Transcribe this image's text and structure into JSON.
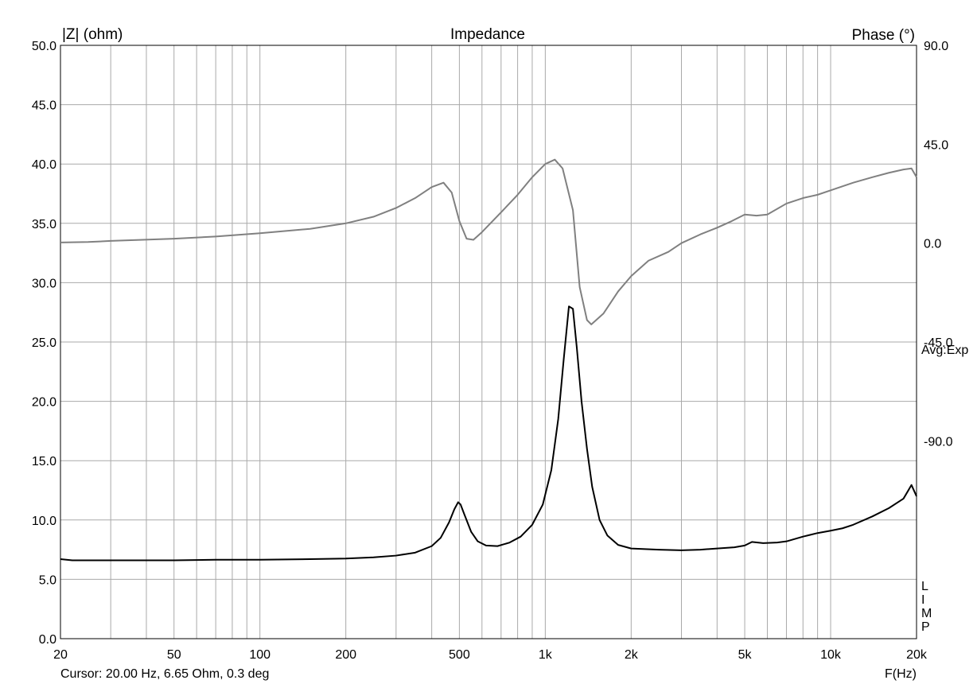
{
  "chart_data": {
    "type": "line",
    "title": "Impedance",
    "ylabel_left": "|Z| (ohm)",
    "ylabel_right": "Phase (°)",
    "xlabel": "F(Hz)",
    "x_scale": "log",
    "xlim": [
      20,
      20000
    ],
    "ylim_left": [
      0,
      50
    ],
    "ylim_right": [
      -180,
      90
    ],
    "grid": true,
    "x_ticks": [
      {
        "value": 20,
        "label": "20"
      },
      {
        "value": 50,
        "label": "50"
      },
      {
        "value": 100,
        "label": "100"
      },
      {
        "value": 200,
        "label": "200"
      },
      {
        "value": 500,
        "label": "500"
      },
      {
        "value": 1000,
        "label": "1k"
      },
      {
        "value": 2000,
        "label": "2k"
      },
      {
        "value": 5000,
        "label": "5k"
      },
      {
        "value": 10000,
        "label": "10k"
      },
      {
        "value": 20000,
        "label": "20k"
      }
    ],
    "x_minor_grid": [
      30,
      40,
      50,
      60,
      70,
      80,
      90,
      100,
      200,
      300,
      400,
      500,
      600,
      700,
      800,
      900,
      1000,
      2000,
      3000,
      4000,
      5000,
      6000,
      7000,
      8000,
      9000,
      10000
    ],
    "y_left_ticks": [
      {
        "value": 0,
        "label": "0.0"
      },
      {
        "value": 5,
        "label": "5.0"
      },
      {
        "value": 10,
        "label": "10.0"
      },
      {
        "value": 15,
        "label": "15.0"
      },
      {
        "value": 20,
        "label": "20.0"
      },
      {
        "value": 25,
        "label": "25.0"
      },
      {
        "value": 30,
        "label": "30.0"
      },
      {
        "value": 35,
        "label": "35.0"
      },
      {
        "value": 40,
        "label": "40.0"
      },
      {
        "value": 45,
        "label": "45.0"
      },
      {
        "value": 50,
        "label": "50.0"
      }
    ],
    "y_right_ticks": [
      {
        "value": 90,
        "label": "90.0"
      },
      {
        "value": 45,
        "label": "45.0"
      },
      {
        "value": 0,
        "label": "0.0"
      },
      {
        "value": -45,
        "label": "-45.0"
      },
      {
        "value": -90,
        "label": "-90.0"
      }
    ],
    "annotations": {
      "avg": "Avg:Exp",
      "limp": [
        "L",
        "I",
        "M",
        "P"
      ],
      "cursor": "Cursor: 20.00 Hz, 6.65 Ohm, 0.3 deg"
    },
    "series": [
      {
        "axis": "left",
        "color": "#000000",
        "points": [
          [
            20,
            6.7
          ],
          [
            22,
            6.6
          ],
          [
            25,
            6.6
          ],
          [
            30,
            6.6
          ],
          [
            40,
            6.6
          ],
          [
            50,
            6.6
          ],
          [
            70,
            6.65
          ],
          [
            100,
            6.65
          ],
          [
            150,
            6.7
          ],
          [
            200,
            6.75
          ],
          [
            250,
            6.85
          ],
          [
            300,
            7.0
          ],
          [
            350,
            7.25
          ],
          [
            400,
            7.8
          ],
          [
            430,
            8.5
          ],
          [
            460,
            9.8
          ],
          [
            480,
            10.9
          ],
          [
            495,
            11.5
          ],
          [
            505,
            11.3
          ],
          [
            520,
            10.5
          ],
          [
            550,
            9.0
          ],
          [
            580,
            8.2
          ],
          [
            620,
            7.85
          ],
          [
            680,
            7.8
          ],
          [
            750,
            8.1
          ],
          [
            820,
            8.6
          ],
          [
            900,
            9.6
          ],
          [
            980,
            11.3
          ],
          [
            1050,
            14.2
          ],
          [
            1110,
            18.5
          ],
          [
            1160,
            23.5
          ],
          [
            1210,
            28.0
          ],
          [
            1250,
            27.8
          ],
          [
            1290,
            24.5
          ],
          [
            1340,
            20.0
          ],
          [
            1400,
            16.0
          ],
          [
            1460,
            12.8
          ],
          [
            1550,
            10.0
          ],
          [
            1650,
            8.7
          ],
          [
            1800,
            7.9
          ],
          [
            2000,
            7.6
          ],
          [
            2500,
            7.5
          ],
          [
            3000,
            7.45
          ],
          [
            3500,
            7.5
          ],
          [
            4000,
            7.6
          ],
          [
            4600,
            7.7
          ],
          [
            5000,
            7.85
          ],
          [
            5300,
            8.15
          ],
          [
            5800,
            8.05
          ],
          [
            6500,
            8.1
          ],
          [
            7000,
            8.2
          ],
          [
            8000,
            8.6
          ],
          [
            9000,
            8.9
          ],
          [
            10000,
            9.1
          ],
          [
            11000,
            9.3
          ],
          [
            12000,
            9.6
          ],
          [
            14000,
            10.3
          ],
          [
            16000,
            11.0
          ],
          [
            18000,
            11.8
          ],
          [
            19200,
            12.95
          ],
          [
            20000,
            12.0
          ]
        ]
      },
      {
        "axis": "right",
        "color": "#808080",
        "points": [
          [
            20,
            0.3
          ],
          [
            25,
            0.5
          ],
          [
            30,
            1.0
          ],
          [
            50,
            2.0
          ],
          [
            70,
            3.0
          ],
          [
            100,
            4.5
          ],
          [
            150,
            6.5
          ],
          [
            200,
            9.0
          ],
          [
            250,
            12.0
          ],
          [
            300,
            16.0
          ],
          [
            350,
            20.5
          ],
          [
            400,
            25.5
          ],
          [
            440,
            27.5
          ],
          [
            470,
            23.0
          ],
          [
            500,
            10.0
          ],
          [
            530,
            2.0
          ],
          [
            560,
            1.5
          ],
          [
            600,
            5.0
          ],
          [
            700,
            14.0
          ],
          [
            800,
            22.0
          ],
          [
            900,
            30.0
          ],
          [
            1000,
            36.0
          ],
          [
            1080,
            38.0
          ],
          [
            1150,
            34.0
          ],
          [
            1250,
            15.0
          ],
          [
            1320,
            -20.0
          ],
          [
            1400,
            -35.0
          ],
          [
            1450,
            -37.0
          ],
          [
            1600,
            -32.0
          ],
          [
            1800,
            -22.0
          ],
          [
            2000,
            -15.0
          ],
          [
            2300,
            -8.0
          ],
          [
            2700,
            -4.0
          ],
          [
            3000,
            0.0
          ],
          [
            3500,
            4.0
          ],
          [
            4000,
            7.0
          ],
          [
            4500,
            10.0
          ],
          [
            5000,
            13.0
          ],
          [
            5500,
            12.5
          ],
          [
            6000,
            13.0
          ],
          [
            7000,
            18.0
          ],
          [
            8000,
            20.5
          ],
          [
            9000,
            22.0
          ],
          [
            10000,
            24.0
          ],
          [
            12000,
            27.5
          ],
          [
            14000,
            30.0
          ],
          [
            16000,
            32.0
          ],
          [
            18000,
            33.5
          ],
          [
            19200,
            34.0
          ],
          [
            20000,
            30.0
          ]
        ]
      }
    ]
  }
}
